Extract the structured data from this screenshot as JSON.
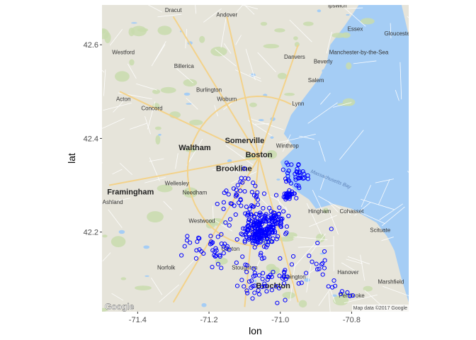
{
  "chart_data": {
    "type": "scatter",
    "xlabel": "lon",
    "ylabel": "lat",
    "xlim": [
      -71.5,
      -70.64
    ],
    "ylim": [
      42.03,
      42.685
    ],
    "xticks": [
      -71.4,
      -71.2,
      -71.0,
      -70.8
    ],
    "xtick_labels": [
      "-71.4",
      "-71.2",
      "-71.0",
      "-70.8"
    ],
    "yticks": [
      42.2,
      42.4,
      42.6
    ],
    "ytick_labels": [
      "42.2",
      "42.4",
      "42.6"
    ],
    "marker": "open-circle",
    "marker_color": "#0000ff",
    "clusters": [
      {
        "center": [
          -71.06,
          42.2
        ],
        "spread": [
          0.035,
          0.03
        ],
        "count": 170
      },
      {
        "center": [
          -71.02,
          42.22
        ],
        "spread": [
          0.03,
          0.025
        ],
        "count": 70
      },
      {
        "center": [
          -70.98,
          42.28
        ],
        "spread": [
          0.015,
          0.01
        ],
        "count": 28
      },
      {
        "center": [
          -70.96,
          42.32
        ],
        "spread": [
          0.03,
          0.02
        ],
        "count": 35
      },
      {
        "center": [
          -71.1,
          42.27
        ],
        "spread": [
          0.06,
          0.04
        ],
        "count": 50
      },
      {
        "center": [
          -71.2,
          42.17
        ],
        "spread": [
          0.06,
          0.04
        ],
        "count": 40
      },
      {
        "center": [
          -71.05,
          42.1
        ],
        "spread": [
          0.08,
          0.035
        ],
        "count": 55
      },
      {
        "center": [
          -70.9,
          42.13
        ],
        "spread": [
          0.06,
          0.04
        ],
        "count": 20
      },
      {
        "center": [
          -70.82,
          42.07
        ],
        "spread": [
          0.03,
          0.02
        ],
        "count": 6
      }
    ]
  },
  "map": {
    "colors": {
      "land": "#e6e4da",
      "water": "#a5cdf5",
      "park": "#c8dcad",
      "road": "#ffffff",
      "highway": "#f3d28a"
    },
    "places": [
      {
        "name": "Dracut",
        "lon": -71.3,
        "lat": 42.67
      },
      {
        "name": "Andover",
        "lon": -71.15,
        "lat": 42.66
      },
      {
        "name": "Ipswich",
        "lon": -70.84,
        "lat": 42.68
      },
      {
        "name": "Essex",
        "lon": -70.79,
        "lat": 42.63
      },
      {
        "name": "Gloucester",
        "lon": -70.67,
        "lat": 42.62
      },
      {
        "name": "Westford",
        "lon": -71.44,
        "lat": 42.58
      },
      {
        "name": "Danvers",
        "lon": -70.96,
        "lat": 42.57
      },
      {
        "name": "Manchester-by-the-Sea",
        "lon": -70.78,
        "lat": 42.58
      },
      {
        "name": "Billerica",
        "lon": -71.27,
        "lat": 42.55
      },
      {
        "name": "Beverly",
        "lon": -70.88,
        "lat": 42.56
      },
      {
        "name": "Burlington",
        "lon": -71.2,
        "lat": 42.5
      },
      {
        "name": "Salem",
        "lon": -70.9,
        "lat": 42.52
      },
      {
        "name": "Acton",
        "lon": -71.44,
        "lat": 42.48
      },
      {
        "name": "Woburn",
        "lon": -71.15,
        "lat": 42.48
      },
      {
        "name": "Concord",
        "lon": -71.36,
        "lat": 42.46
      },
      {
        "name": "Lynn",
        "lon": -70.95,
        "lat": 42.47
      },
      {
        "name": "Winthrop",
        "lon": -70.98,
        "lat": 42.38
      },
      {
        "name": "Ashland",
        "lon": -71.47,
        "lat": 42.26
      },
      {
        "name": "Wellesley",
        "lon": -71.29,
        "lat": 42.3
      },
      {
        "name": "Hingham",
        "lon": -70.89,
        "lat": 42.24
      },
      {
        "name": "Cohasset",
        "lon": -70.8,
        "lat": 42.24
      },
      {
        "name": "Scituate",
        "lon": -70.72,
        "lat": 42.2
      },
      {
        "name": "Needham",
        "lon": -71.24,
        "lat": 42.28
      },
      {
        "name": "Westwood",
        "lon": -71.22,
        "lat": 42.22
      },
      {
        "name": "Canton",
        "lon": -71.14,
        "lat": 42.16
      },
      {
        "name": "Norfolk",
        "lon": -71.32,
        "lat": 42.12
      },
      {
        "name": "Stoughton",
        "lon": -71.1,
        "lat": 42.12
      },
      {
        "name": "Hanover",
        "lon": -70.81,
        "lat": 42.11
      },
      {
        "name": "Marshfield",
        "lon": -70.69,
        "lat": 42.09
      },
      {
        "name": "Pembroke",
        "lon": -70.8,
        "lat": 42.06
      },
      {
        "name": "Abington",
        "lon": -70.96,
        "lat": 42.1
      }
    ],
    "major_places": [
      {
        "name": "Waltham",
        "lon": -71.24,
        "lat": 42.375
      },
      {
        "name": "Somerville",
        "lon": -71.1,
        "lat": 42.39
      },
      {
        "name": "Boston",
        "lon": -71.06,
        "lat": 42.36
      },
      {
        "name": "Brookline",
        "lon": -71.13,
        "lat": 42.33
      },
      {
        "name": "Framingham",
        "lon": -71.42,
        "lat": 42.28
      },
      {
        "name": "Brockton",
        "lon": -71.02,
        "lat": 42.08
      }
    ],
    "water_labels": [
      {
        "name": "Massachusetts Bay",
        "lon": -70.86,
        "lat": 42.31
      }
    ],
    "logo": "Google",
    "attribution": "Map data ©2017 Google"
  }
}
